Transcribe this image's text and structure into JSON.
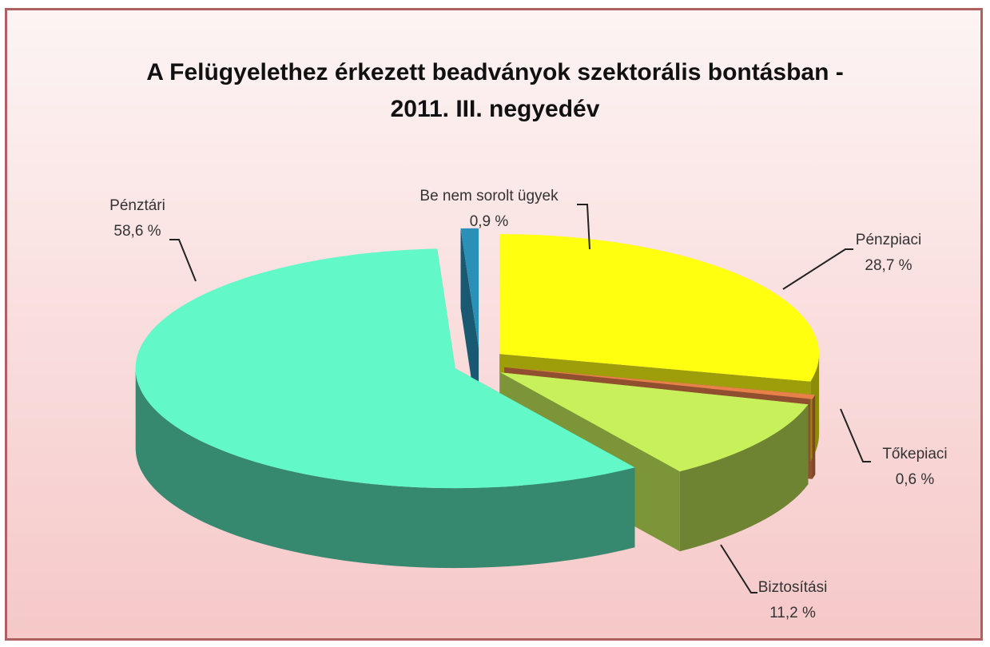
{
  "chart_data": {
    "type": "pie",
    "title": "A Felügyelethez érkezett beadványok szektorális bontásban -\n2011. III. negyedév",
    "categories": [
      "Pénzpiaci",
      "Tőkepiaci",
      "Biztosítási",
      "Pénztári",
      "Be nem sorolt ügyek"
    ],
    "values": [
      28.7,
      0.6,
      11.2,
      58.6,
      0.9
    ],
    "value_labels": [
      "28,7 %",
      "0,6 %",
      "11,2 %",
      "58,6 %",
      "0,9 %"
    ],
    "colors": [
      "#ffff10",
      "#e8804a",
      "#c8f05a",
      "#62f8c8",
      "#2a90b8"
    ]
  }
}
